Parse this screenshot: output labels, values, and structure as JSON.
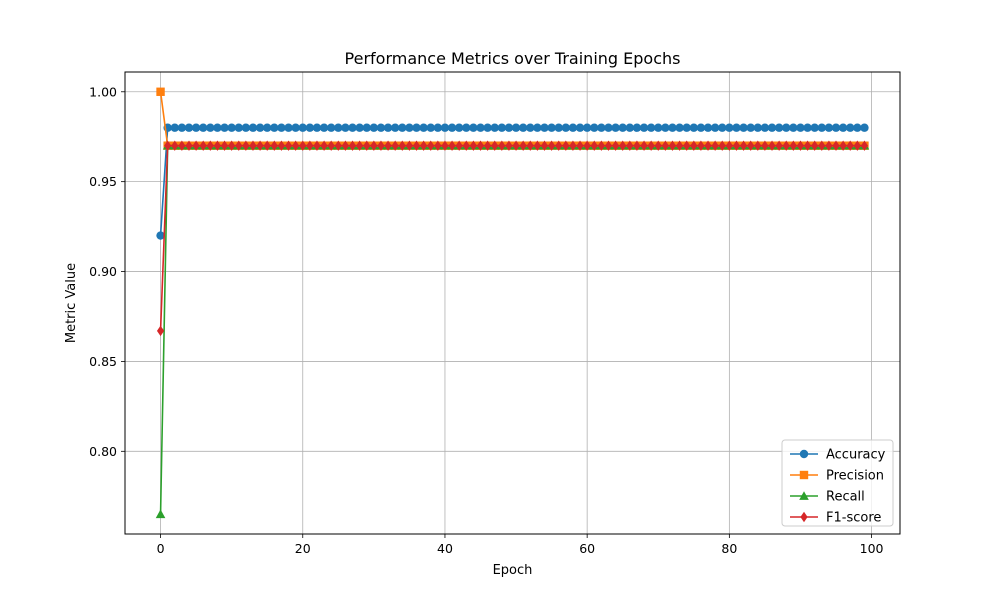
{
  "chart_data": {
    "type": "line",
    "title": "Performance Metrics over Training Epochs",
    "xlabel": "Epoch",
    "ylabel": "Metric Value",
    "xlim": [
      -5,
      104
    ],
    "ylim": [
      0.754,
      1.011
    ],
    "xticks": [
      0,
      20,
      40,
      60,
      80,
      100
    ],
    "yticks": [
      0.8,
      0.85,
      0.9,
      0.95,
      1.0
    ],
    "ytick_labels": [
      "0.80",
      "0.85",
      "0.90",
      "0.95",
      "1.00"
    ],
    "grid": true,
    "legend_position": "bottom-right",
    "x": {
      "start": 0,
      "end": 99,
      "step": 1
    },
    "series": [
      {
        "name": "Accuracy",
        "color": "#1f77b4",
        "marker": "circle",
        "first": [
          0.92
        ],
        "rest": 0.98
      },
      {
        "name": "Precision",
        "color": "#ff7f0e",
        "marker": "square",
        "first": [
          1.0
        ],
        "rest": 0.97
      },
      {
        "name": "Recall",
        "color": "#2ca02c",
        "marker": "triangle",
        "first": [
          0.765
        ],
        "rest": 0.97
      },
      {
        "name": "F1-score",
        "color": "#d62728",
        "marker": "diamond",
        "first": [
          0.867
        ],
        "rest": 0.97
      }
    ]
  }
}
